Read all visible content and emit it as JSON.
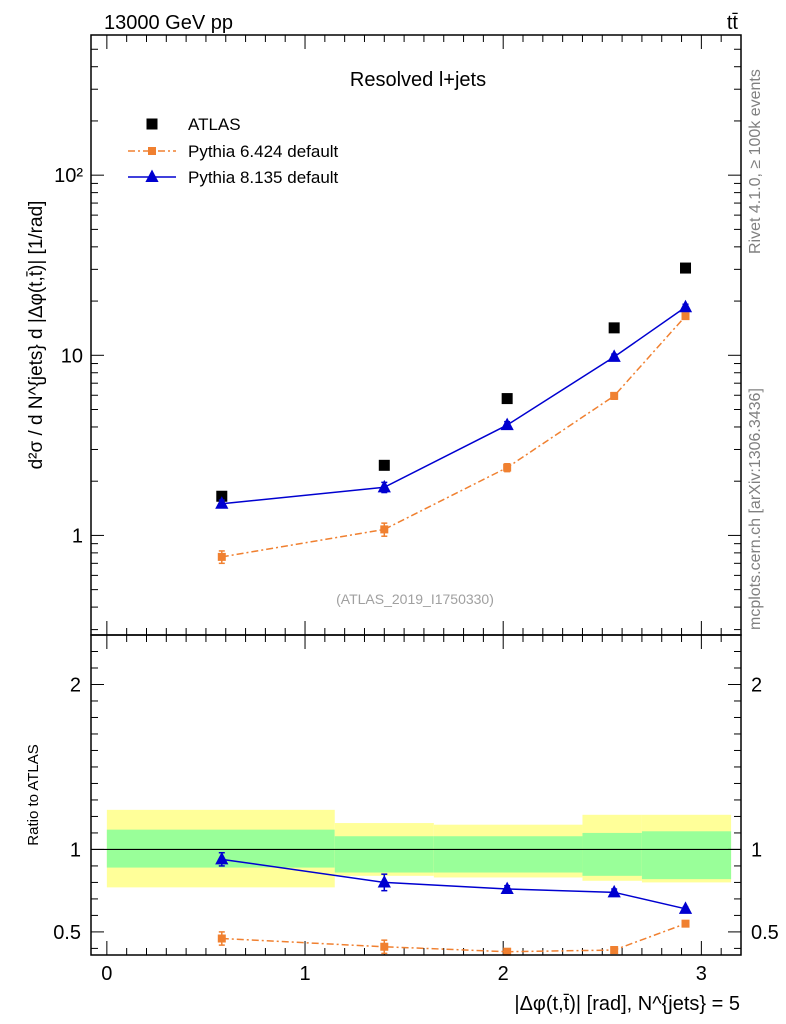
{
  "header": {
    "energy_label": "13000 GeV pp",
    "process_label": "tt̄"
  },
  "side_labels": {
    "rivet": "Rivet 4.1.0, ≥ 100k events",
    "source": "mcplots.cern.ch [arXiv:1306.3436]"
  },
  "chart_data": [
    {
      "type": "scatter",
      "panel": "main",
      "title": "Resolved l+jets",
      "watermark": "(ATLAS_2019_I1750330)",
      "ylabel": "d²σ / d N^{jets} d |Δφ(t,t̄)| [1/rad]",
      "yscale": "log",
      "ylim": [
        0.28,
        600
      ],
      "xlim": [
        -0.08,
        3.2
      ],
      "yticks": [
        1,
        10,
        100
      ],
      "ytick_labels": [
        "1",
        "10",
        "10²"
      ],
      "legend_position": "top-left",
      "x": [
        0.58,
        1.4,
        2.02,
        2.56,
        2.92
      ],
      "series": [
        {
          "name": "ATLAS",
          "color": "#000000",
          "marker": "square",
          "values": [
            1.65,
            2.45,
            5.75,
            14.2,
            30.5
          ]
        },
        {
          "name": "Pythia 6.424 default",
          "color": "#f08030",
          "marker": "square",
          "line": "dashdot",
          "values": [
            0.76,
            1.08,
            2.38,
            5.95,
            16.5
          ],
          "errors": [
            0.06,
            0.09,
            0.12,
            0.25,
            0.6
          ]
        },
        {
          "name": "Pythia 8.135 default",
          "color": "#0000d0",
          "marker": "triangle",
          "line": "solid",
          "values": [
            1.5,
            1.85,
            4.1,
            9.8,
            18.5
          ],
          "errors": [
            0.07,
            0.12,
            0.18,
            0.35,
            0.7
          ]
        }
      ]
    },
    {
      "type": "line",
      "panel": "ratio",
      "ylabel": "Ratio to ATLAS",
      "xlabel": "|Δφ(t,t̄)| [rad], N^{jets} = 5",
      "ylim": [
        0.36,
        2.3
      ],
      "xlim": [
        -0.08,
        3.2
      ],
      "yticks": [
        0.5,
        1,
        2
      ],
      "ytick_labels": [
        "0.5",
        "1",
        "2"
      ],
      "xticks": [
        0,
        1,
        2,
        3
      ],
      "xtick_labels": [
        "0",
        "1",
        "2",
        "3"
      ],
      "reference": 1,
      "uncertainty_bands": {
        "edges": [
          0.0,
          1.15,
          1.65,
          2.4,
          2.7,
          3.15
        ],
        "inner": [
          [
            0.89,
            1.12
          ],
          [
            0.86,
            1.08
          ],
          [
            0.86,
            1.08
          ],
          [
            0.84,
            1.1
          ],
          [
            0.82,
            1.11
          ]
        ],
        "outer": [
          [
            0.77,
            1.24
          ],
          [
            0.84,
            1.16
          ],
          [
            0.83,
            1.15
          ],
          [
            0.81,
            1.21
          ],
          [
            0.8,
            1.21
          ]
        ],
        "inner_color": "#99ff99",
        "outer_color": "#ffff99"
      },
      "x": [
        0.58,
        1.4,
        2.02,
        2.56,
        2.92
      ],
      "series": [
        {
          "name": "Pythia 6.424 default",
          "color": "#f08030",
          "marker": "square",
          "line": "dashdot",
          "values": [
            0.46,
            0.41,
            0.38,
            0.39,
            0.55
          ],
          "errors": [
            0.04,
            0.04,
            0.015,
            0.02,
            0.01
          ]
        },
        {
          "name": "Pythia 8.135 default",
          "color": "#0000d0",
          "marker": "triangle",
          "line": "solid",
          "values": [
            0.94,
            0.8,
            0.76,
            0.74,
            0.64
          ],
          "errors": [
            0.04,
            0.05,
            0.02,
            0.02,
            0.01
          ]
        }
      ]
    }
  ]
}
